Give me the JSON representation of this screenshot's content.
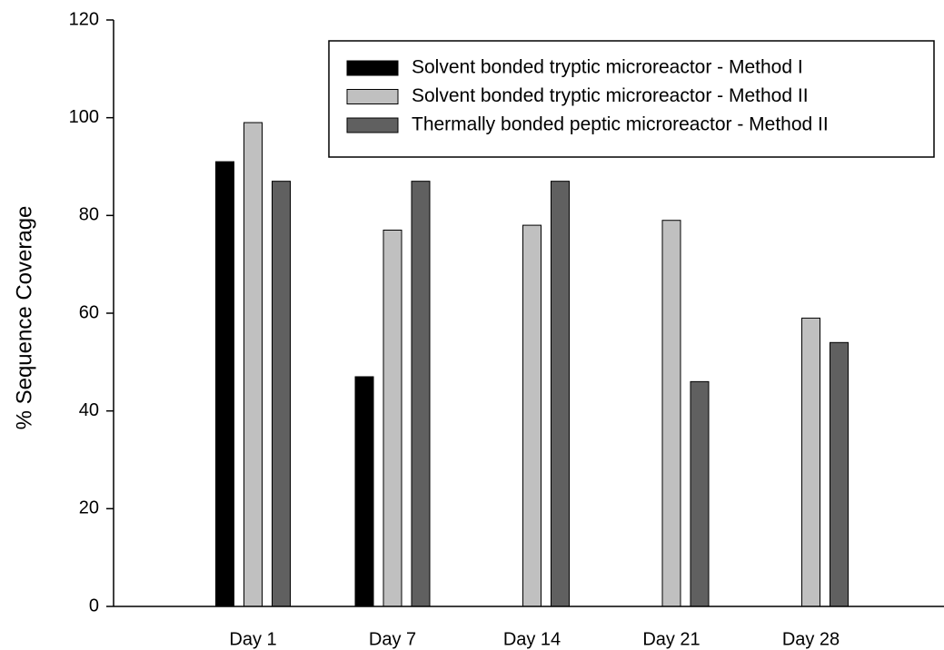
{
  "chart_data": {
    "type": "bar",
    "ylabel": "% Sequence Coverage",
    "categories": [
      "Day 1",
      "Day 7",
      "Day 14",
      "Day 21",
      "Day 28"
    ],
    "series": [
      {
        "name": "Solvent bonded tryptic microreactor - Method I",
        "color": "#000000",
        "values": [
          91,
          47,
          null,
          null,
          null
        ]
      },
      {
        "name": "Solvent bonded tryptic microreactor - Method II",
        "color": "#c0c0c0",
        "values": [
          99,
          77,
          78,
          79,
          59
        ]
      },
      {
        "name": "Thermally bonded peptic microreactor - Method II",
        "color": "#606060",
        "values": [
          87,
          87,
          87,
          46,
          54
        ]
      }
    ],
    "ylim": [
      0,
      120
    ],
    "yticks": [
      0,
      20,
      40,
      60,
      80,
      100,
      120
    ],
    "legend": "upper right"
  }
}
